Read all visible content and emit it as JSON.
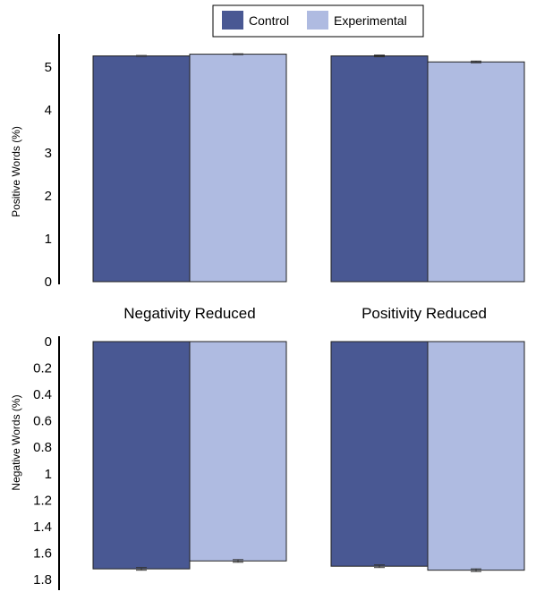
{
  "chart_data": {
    "type": "bar",
    "colors": {
      "Control": "#495893",
      "Experimental": "#afbbe1"
    },
    "legend": {
      "position": "top-center",
      "entries": [
        "Control",
        "Experimental"
      ]
    },
    "grid": false,
    "groups": [
      "Negativity Reduced",
      "Positivity Reduced"
    ],
    "panels": [
      {
        "name": "top",
        "ylabel": "Positive Words (%)",
        "ylim": [
          0,
          5.5
        ],
        "yticks": [
          "0",
          "1",
          "2",
          "3",
          "4",
          "5"
        ],
        "yticks_values": [
          0,
          1,
          2,
          3,
          4,
          5
        ],
        "inverted": false,
        "series": [
          {
            "name": "Control",
            "values": [
              5.26,
              5.26
            ],
            "errors": [
              0.01,
              0.02
            ]
          },
          {
            "name": "Experimental",
            "values": [
              5.3,
              5.12
            ],
            "errors": [
              0.01,
              0.02
            ]
          }
        ]
      },
      {
        "name": "bottom",
        "ylabel": "Negative Words (%)",
        "ylim": [
          0,
          1.8
        ],
        "yticks": [
          "0",
          "0.2",
          "0.4",
          "0.6",
          "0.8",
          "1",
          "1.2",
          "1.4",
          "1.6",
          "1.8"
        ],
        "yticks_values": [
          0,
          0.2,
          0.4,
          0.6,
          0.8,
          1.0,
          1.2,
          1.4,
          1.6,
          1.8
        ],
        "inverted": true,
        "series": [
          {
            "name": "Control",
            "values": [
              1.72,
              1.7
            ],
            "errors": [
              0.01,
              0.01
            ]
          },
          {
            "name": "Experimental",
            "values": [
              1.66,
              1.73
            ],
            "errors": [
              0.01,
              0.01
            ]
          }
        ]
      }
    ]
  }
}
